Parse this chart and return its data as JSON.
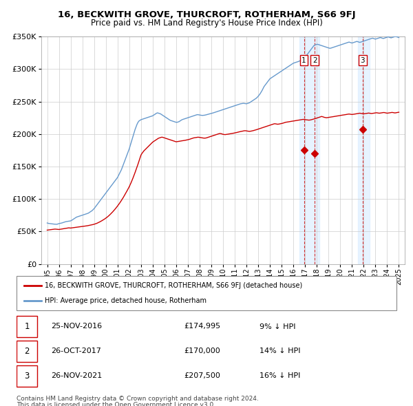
{
  "title": "16, BECKWITH GROVE, THURCROFT, ROTHERHAM, S66 9FJ",
  "subtitle": "Price paid vs. HM Land Registry's House Price Index (HPI)",
  "ylim": [
    0,
    350000
  ],
  "yticks": [
    0,
    50000,
    100000,
    150000,
    200000,
    250000,
    300000,
    350000
  ],
  "ytick_labels": [
    "£0",
    "£50K",
    "£100K",
    "£150K",
    "£200K",
    "£250K",
    "£300K",
    "£350K"
  ],
  "xlim_start": 1994.5,
  "xlim_end": 2025.5,
  "transactions": [
    {
      "label": "1",
      "date": "25-NOV-2016",
      "price": 174995,
      "hpi_diff": "9% ↓ HPI",
      "year": 2016.9
    },
    {
      "label": "2",
      "date": "26-OCT-2017",
      "price": 170000,
      "hpi_diff": "14% ↓ HPI",
      "year": 2017.82
    },
    {
      "label": "3",
      "date": "26-NOV-2021",
      "price": 207500,
      "hpi_diff": "16% ↓ HPI",
      "year": 2021.9
    }
  ],
  "legend_property": "16, BECKWITH GROVE, THURCROFT, ROTHERHAM, S66 9FJ (detached house)",
  "legend_hpi": "HPI: Average price, detached house, Rotherham",
  "footnote1": "Contains HM Land Registry data © Crown copyright and database right 2024.",
  "footnote2": "This data is licensed under the Open Government Licence v3.0.",
  "property_color": "#cc0000",
  "hpi_color": "#6699cc",
  "hpi_fill_color": "#cce0f0",
  "shaded_regions": [
    {
      "x_start": 2016.5,
      "x_end": 2018.2
    },
    {
      "x_start": 2021.5,
      "x_end": 2022.5
    }
  ],
  "hpi_data_years": [
    1995.0,
    1995.083,
    1995.167,
    1995.25,
    1995.333,
    1995.417,
    1995.5,
    1995.583,
    1995.667,
    1995.75,
    1995.833,
    1995.917,
    1996.0,
    1996.083,
    1996.167,
    1996.25,
    1996.333,
    1996.417,
    1996.5,
    1996.583,
    1996.667,
    1996.75,
    1996.833,
    1996.917,
    1997.0,
    1997.083,
    1997.167,
    1997.25,
    1997.333,
    1997.417,
    1997.5,
    1997.583,
    1997.667,
    1997.75,
    1997.833,
    1997.917,
    1998.0,
    1998.083,
    1998.167,
    1998.25,
    1998.333,
    1998.417,
    1998.5,
    1998.583,
    1998.667,
    1998.75,
    1998.833,
    1998.917,
    1999.0,
    1999.083,
    1999.167,
    1999.25,
    1999.333,
    1999.417,
    1999.5,
    1999.583,
    1999.667,
    1999.75,
    1999.833,
    1999.917,
    2000.0,
    2000.083,
    2000.167,
    2000.25,
    2000.333,
    2000.417,
    2000.5,
    2000.583,
    2000.667,
    2000.75,
    2000.833,
    2000.917,
    2001.0,
    2001.083,
    2001.167,
    2001.25,
    2001.333,
    2001.417,
    2001.5,
    2001.583,
    2001.667,
    2001.75,
    2001.833,
    2001.917,
    2002.0,
    2002.083,
    2002.167,
    2002.25,
    2002.333,
    2002.417,
    2002.5,
    2002.583,
    2002.667,
    2002.75,
    2002.833,
    2002.917,
    2003.0,
    2003.083,
    2003.167,
    2003.25,
    2003.333,
    2003.417,
    2003.5,
    2003.583,
    2003.667,
    2003.75,
    2003.833,
    2003.917,
    2004.0,
    2004.083,
    2004.167,
    2004.25,
    2004.333,
    2004.417,
    2004.5,
    2004.583,
    2004.667,
    2004.75,
    2004.833,
    2004.917,
    2005.0,
    2005.083,
    2005.167,
    2005.25,
    2005.333,
    2005.417,
    2005.5,
    2005.583,
    2005.667,
    2005.75,
    2005.833,
    2005.917,
    2006.0,
    2006.083,
    2006.167,
    2006.25,
    2006.333,
    2006.417,
    2006.5,
    2006.583,
    2006.667,
    2006.75,
    2006.833,
    2006.917,
    2007.0,
    2007.083,
    2007.167,
    2007.25,
    2007.333,
    2007.417,
    2007.5,
    2007.583,
    2007.667,
    2007.75,
    2007.833,
    2007.917,
    2008.0,
    2008.083,
    2008.167,
    2008.25,
    2008.333,
    2008.417,
    2008.5,
    2008.583,
    2008.667,
    2008.75,
    2008.833,
    2008.917,
    2009.0,
    2009.083,
    2009.167,
    2009.25,
    2009.333,
    2009.417,
    2009.5,
    2009.583,
    2009.667,
    2009.75,
    2009.833,
    2009.917,
    2010.0,
    2010.083,
    2010.167,
    2010.25,
    2010.333,
    2010.417,
    2010.5,
    2010.583,
    2010.667,
    2010.75,
    2010.833,
    2010.917,
    2011.0,
    2011.083,
    2011.167,
    2011.25,
    2011.333,
    2011.417,
    2011.5,
    2011.583,
    2011.667,
    2011.75,
    2011.833,
    2011.917,
    2012.0,
    2012.083,
    2012.167,
    2012.25,
    2012.333,
    2012.417,
    2012.5,
    2012.583,
    2012.667,
    2012.75,
    2012.833,
    2012.917,
    2013.0,
    2013.083,
    2013.167,
    2013.25,
    2013.333,
    2013.417,
    2013.5,
    2013.583,
    2013.667,
    2013.75,
    2013.833,
    2013.917,
    2014.0,
    2014.083,
    2014.167,
    2014.25,
    2014.333,
    2014.417,
    2014.5,
    2014.583,
    2014.667,
    2014.75,
    2014.833,
    2014.917,
    2015.0,
    2015.083,
    2015.167,
    2015.25,
    2015.333,
    2015.417,
    2015.5,
    2015.583,
    2015.667,
    2015.75,
    2015.833,
    2015.917,
    2016.0,
    2016.083,
    2016.167,
    2016.25,
    2016.333,
    2016.417,
    2016.5,
    2016.583,
    2016.667,
    2016.75,
    2016.833,
    2016.917,
    2017.0,
    2017.083,
    2017.167,
    2017.25,
    2017.333,
    2017.417,
    2017.5,
    2017.583,
    2017.667,
    2017.75,
    2017.833,
    2017.917,
    2018.0,
    2018.083,
    2018.167,
    2018.25,
    2018.333,
    2018.417,
    2018.5,
    2018.583,
    2018.667,
    2018.75,
    2018.833,
    2018.917,
    2019.0,
    2019.083,
    2019.167,
    2019.25,
    2019.333,
    2019.417,
    2019.5,
    2019.583,
    2019.667,
    2019.75,
    2019.833,
    2019.917,
    2020.0,
    2020.083,
    2020.167,
    2020.25,
    2020.333,
    2020.417,
    2020.5,
    2020.583,
    2020.667,
    2020.75,
    2020.833,
    2020.917,
    2021.0,
    2021.083,
    2021.167,
    2021.25,
    2021.333,
    2021.417,
    2021.5,
    2021.583,
    2021.667,
    2021.75,
    2021.833,
    2021.917,
    2022.0,
    2022.083,
    2022.167,
    2022.25,
    2022.333,
    2022.417,
    2022.5,
    2022.583,
    2022.667,
    2022.75,
    2022.833,
    2022.917,
    2023.0,
    2023.083,
    2023.167,
    2023.25,
    2023.333,
    2023.417,
    2023.5,
    2023.583,
    2023.667,
    2023.75,
    2023.833,
    2023.917,
    2024.0,
    2024.083,
    2024.167,
    2024.25,
    2024.333,
    2024.417,
    2024.5,
    2024.583,
    2024.667,
    2024.75,
    2024.833,
    2024.917,
    2025.0
  ],
  "hpi_data_values": [
    63000,
    62500,
    62200,
    62000,
    61800,
    61500,
    61300,
    61200,
    61100,
    61000,
    61000,
    61500,
    62000,
    62300,
    62600,
    63000,
    63500,
    64000,
    64500,
    65000,
    65300,
    65500,
    65700,
    65900,
    66200,
    67000,
    68000,
    69000,
    70000,
    71000,
    72000,
    72500,
    73000,
    73500,
    74000,
    74500,
    75000,
    75500,
    76000,
    76500,
    77000,
    77500,
    78000,
    79000,
    80000,
    81000,
    82000,
    83500,
    85000,
    87000,
    89000,
    91000,
    93000,
    95000,
    97000,
    99000,
    101000,
    103000,
    105000,
    107000,
    109000,
    111000,
    113000,
    115000,
    117000,
    119000,
    121000,
    123000,
    125000,
    127000,
    129000,
    131000,
    133000,
    136000,
    139000,
    142000,
    145000,
    149000,
    153000,
    157000,
    161000,
    165000,
    169000,
    173000,
    177000,
    182000,
    187000,
    192000,
    197000,
    202000,
    207000,
    211000,
    215000,
    218000,
    220000,
    221000,
    222000,
    222500,
    223000,
    223500,
    224000,
    224500,
    225000,
    225500,
    226000,
    226500,
    227000,
    227500,
    228000,
    229000,
    230000,
    231000,
    232000,
    232500,
    232000,
    231500,
    231000,
    230000,
    229000,
    228000,
    227000,
    226000,
    225000,
    224000,
    223000,
    222000,
    221000,
    220500,
    220000,
    219500,
    219000,
    218500,
    218000,
    218000,
    218500,
    219000,
    220000,
    221000,
    222000,
    222500,
    223000,
    223500,
    224000,
    224500,
    225000,
    225500,
    226000,
    226500,
    227000,
    227500,
    228000,
    228500,
    229000,
    229500,
    229800,
    229500,
    229200,
    228900,
    228700,
    228600,
    228700,
    228900,
    229200,
    229600,
    230000,
    230400,
    230800,
    231200,
    231600,
    232000,
    232500,
    233000,
    233500,
    234000,
    234500,
    235000,
    235500,
    236000,
    236500,
    237000,
    237500,
    238000,
    238500,
    239000,
    239500,
    240000,
    240500,
    241000,
    241500,
    242000,
    242500,
    243000,
    243500,
    244000,
    244500,
    245000,
    245500,
    246000,
    246500,
    246800,
    247000,
    247200,
    247000,
    246800,
    246500,
    247000,
    247500,
    248000,
    249000,
    250000,
    251000,
    252000,
    253000,
    254000,
    255000,
    256500,
    258000,
    260000,
    262000,
    264500,
    267000,
    270000,
    273000,
    275000,
    277000,
    279000,
    281000,
    283000,
    285000,
    286000,
    287000,
    288000,
    289000,
    290000,
    291000,
    292000,
    293000,
    294000,
    295000,
    296000,
    297000,
    298000,
    299000,
    300000,
    301000,
    302000,
    303000,
    304000,
    305000,
    306000,
    307000,
    308000,
    309000,
    309500,
    310000,
    310500,
    311000,
    311500,
    312000,
    313000,
    314000,
    315000,
    316000,
    317000,
    318000,
    320000,
    322000,
    324000,
    326000,
    328000,
    330000,
    332000,
    334000,
    336000,
    337000,
    337500,
    338000,
    338000,
    337500,
    337000,
    336500,
    336000,
    335500,
    335000,
    334500,
    334000,
    333500,
    333000,
    332500,
    332000,
    332000,
    332500,
    333000,
    333500,
    334000,
    334500,
    335000,
    335500,
    336000,
    336500,
    337000,
    337500,
    338000,
    338500,
    339000,
    339500,
    340000,
    340500,
    341000,
    341500,
    341000,
    340500,
    340000,
    340500,
    341000,
    341500,
    342000,
    342500,
    342000,
    341500,
    341000,
    341500,
    342000,
    342500,
    343000,
    343500,
    344000,
    344500,
    345000,
    345500,
    346000,
    346500,
    347000,
    347500,
    347000,
    346500,
    346000,
    346500,
    347000,
    347500,
    348000,
    348500,
    348000,
    347500,
    347000,
    347500,
    348000,
    348500,
    349000,
    349500,
    349000,
    348500,
    348000,
    348500,
    349000,
    349500,
    350000,
    350000,
    349500,
    349000,
    348500
  ],
  "prop_data_years": [
    1995.0,
    1995.083,
    1995.167,
    1995.25,
    1995.333,
    1995.417,
    1995.5,
    1995.583,
    1995.667,
    1995.75,
    1995.833,
    1995.917,
    1996.0,
    1996.083,
    1996.167,
    1996.25,
    1996.333,
    1996.417,
    1996.5,
    1996.583,
    1996.667,
    1996.75,
    1996.833,
    1996.917,
    1997.0,
    1997.083,
    1997.167,
    1997.25,
    1997.333,
    1997.417,
    1997.5,
    1997.583,
    1997.667,
    1997.75,
    1997.833,
    1997.917,
    1998.0,
    1998.083,
    1998.167,
    1998.25,
    1998.333,
    1998.417,
    1998.5,
    1998.583,
    1998.667,
    1998.75,
    1998.833,
    1998.917,
    1999.0,
    1999.083,
    1999.167,
    1999.25,
    1999.333,
    1999.417,
    1999.5,
    1999.583,
    1999.667,
    1999.75,
    1999.833,
    1999.917,
    2000.0,
    2000.083,
    2000.167,
    2000.25,
    2000.333,
    2000.417,
    2000.5,
    2000.583,
    2000.667,
    2000.75,
    2000.833,
    2000.917,
    2001.0,
    2001.083,
    2001.167,
    2001.25,
    2001.333,
    2001.417,
    2001.5,
    2001.583,
    2001.667,
    2001.75,
    2001.833,
    2001.917,
    2002.0,
    2002.083,
    2002.167,
    2002.25,
    2002.333,
    2002.417,
    2002.5,
    2002.583,
    2002.667,
    2002.75,
    2002.833,
    2002.917,
    2003.0,
    2003.083,
    2003.167,
    2003.25,
    2003.333,
    2003.417,
    2003.5,
    2003.583,
    2003.667,
    2003.75,
    2003.833,
    2003.917,
    2004.0,
    2004.083,
    2004.167,
    2004.25,
    2004.333,
    2004.417,
    2004.5,
    2004.583,
    2004.667,
    2004.75,
    2004.833,
    2004.917,
    2005.0,
    2005.083,
    2005.167,
    2005.25,
    2005.333,
    2005.417,
    2005.5,
    2005.583,
    2005.667,
    2005.75,
    2005.833,
    2005.917,
    2006.0,
    2006.083,
    2006.167,
    2006.25,
    2006.333,
    2006.417,
    2006.5,
    2006.583,
    2006.667,
    2006.75,
    2006.833,
    2006.917,
    2007.0,
    2007.083,
    2007.167,
    2007.25,
    2007.333,
    2007.417,
    2007.5,
    2007.583,
    2007.667,
    2007.75,
    2007.833,
    2007.917,
    2008.0,
    2008.083,
    2008.167,
    2008.25,
    2008.333,
    2008.417,
    2008.5,
    2008.583,
    2008.667,
    2008.75,
    2008.833,
    2008.917,
    2009.0,
    2009.083,
    2009.167,
    2009.25,
    2009.333,
    2009.417,
    2009.5,
    2009.583,
    2009.667,
    2009.75,
    2009.833,
    2009.917,
    2010.0,
    2010.083,
    2010.167,
    2010.25,
    2010.333,
    2010.417,
    2010.5,
    2010.583,
    2010.667,
    2010.75,
    2010.833,
    2010.917,
    2011.0,
    2011.083,
    2011.167,
    2011.25,
    2011.333,
    2011.417,
    2011.5,
    2011.583,
    2011.667,
    2011.75,
    2011.833,
    2011.917,
    2012.0,
    2012.083,
    2012.167,
    2012.25,
    2012.333,
    2012.417,
    2012.5,
    2012.583,
    2012.667,
    2012.75,
    2012.833,
    2012.917,
    2013.0,
    2013.083,
    2013.167,
    2013.25,
    2013.333,
    2013.417,
    2013.5,
    2013.583,
    2013.667,
    2013.75,
    2013.833,
    2013.917,
    2014.0,
    2014.083,
    2014.167,
    2014.25,
    2014.333,
    2014.417,
    2014.5,
    2014.583,
    2014.667,
    2014.75,
    2014.833,
    2014.917,
    2015.0,
    2015.083,
    2015.167,
    2015.25,
    2015.333,
    2015.417,
    2015.5,
    2015.583,
    2015.667,
    2015.75,
    2015.833,
    2015.917,
    2016.0,
    2016.083,
    2016.167,
    2016.25,
    2016.333,
    2016.417,
    2016.5,
    2016.583,
    2016.667,
    2016.75,
    2016.833,
    2016.917,
    2017.0,
    2017.083,
    2017.167,
    2017.25,
    2017.333,
    2017.417,
    2017.5,
    2017.583,
    2017.667,
    2017.75,
    2017.833,
    2017.917,
    2018.0,
    2018.083,
    2018.167,
    2018.25,
    2018.333,
    2018.417,
    2018.5,
    2018.583,
    2018.667,
    2018.75,
    2018.833,
    2018.917,
    2019.0,
    2019.083,
    2019.167,
    2019.25,
    2019.333,
    2019.417,
    2019.5,
    2019.583,
    2019.667,
    2019.75,
    2019.833,
    2019.917,
    2020.0,
    2020.083,
    2020.167,
    2020.25,
    2020.333,
    2020.417,
    2020.5,
    2020.583,
    2020.667,
    2020.75,
    2020.833,
    2020.917,
    2021.0,
    2021.083,
    2021.167,
    2021.25,
    2021.333,
    2021.417,
    2021.5,
    2021.583,
    2021.667,
    2021.75,
    2021.833,
    2021.917,
    2022.0,
    2022.083,
    2022.167,
    2022.25,
    2022.333,
    2022.417,
    2022.5,
    2022.583,
    2022.667,
    2022.75,
    2022.833,
    2022.917,
    2023.0,
    2023.083,
    2023.167,
    2023.25,
    2023.333,
    2023.417,
    2023.5,
    2023.583,
    2023.667,
    2023.75,
    2023.833,
    2023.917,
    2024.0,
    2024.083,
    2024.167,
    2024.25,
    2024.333,
    2024.417,
    2024.5,
    2024.583,
    2024.667,
    2024.75,
    2024.833,
    2024.917,
    2025.0
  ],
  "prop_data_values": [
    52000,
    52200,
    52400,
    52600,
    52800,
    53000,
    53200,
    53400,
    53600,
    53500,
    53300,
    53100,
    53000,
    53200,
    53500,
    53700,
    54000,
    54200,
    54500,
    54700,
    55000,
    55200,
    55500,
    55300,
    55200,
    55400,
    55600,
    55800,
    56000,
    56200,
    56400,
    56600,
    56800,
    57000,
    57200,
    57400,
    57600,
    57800,
    58000,
    58200,
    58500,
    58700,
    59000,
    59300,
    59600,
    59900,
    60200,
    60600,
    61000,
    61500,
    62000,
    62600,
    63300,
    64000,
    64800,
    65600,
    66500,
    67400,
    68300,
    69300,
    70400,
    71500,
    72700,
    74000,
    75400,
    76900,
    78400,
    80000,
    81700,
    83400,
    85200,
    87100,
    89100,
    91100,
    93200,
    95400,
    97700,
    100100,
    102500,
    105100,
    107700,
    110400,
    113100,
    115900,
    118800,
    122000,
    125400,
    129000,
    132800,
    136700,
    140800,
    145000,
    149300,
    153700,
    158200,
    162800,
    167500,
    170000,
    172000,
    174000,
    175500,
    177000,
    178500,
    180000,
    181500,
    183000,
    184500,
    186000,
    187500,
    188500,
    189500,
    190500,
    191500,
    192500,
    193500,
    194000,
    194500,
    195000,
    195000,
    194500,
    194000,
    193500,
    193000,
    192500,
    192000,
    191500,
    191000,
    190500,
    190000,
    189500,
    189000,
    188500,
    188000,
    188200,
    188500,
    188700,
    189000,
    189200,
    189500,
    189700,
    190000,
    190200,
    190500,
    190700,
    191000,
    191500,
    192000,
    192500,
    193000,
    193500,
    194000,
    194200,
    194500,
    194700,
    195000,
    195000,
    194800,
    194500,
    194200,
    193900,
    193700,
    193600,
    193700,
    194000,
    194500,
    195000,
    195500,
    196000,
    196500,
    197000,
    197500,
    198000,
    198500,
    199000,
    199500,
    200000,
    200500,
    200700,
    200500,
    200000,
    199500,
    199200,
    199000,
    199200,
    199500,
    199700,
    200000,
    200200,
    200500,
    200700,
    201000,
    201300,
    201600,
    202000,
    202300,
    202700,
    203000,
    203400,
    203800,
    204100,
    204500,
    204800,
    205000,
    205000,
    204800,
    204500,
    204200,
    204000,
    204200,
    204500,
    204800,
    205200,
    205600,
    206000,
    206500,
    207000,
    207500,
    208000,
    208500,
    209000,
    209500,
    210000,
    210500,
    211000,
    211500,
    212000,
    212500,
    213000,
    213500,
    214000,
    214500,
    215000,
    215500,
    215800,
    215500,
    215200,
    215000,
    215200,
    215500,
    215800,
    216000,
    216500,
    217000,
    217500,
    218000,
    218200,
    218500,
    218700,
    219000,
    219200,
    219500,
    219700,
    220000,
    220200,
    220500,
    220700,
    221000,
    221200,
    221500,
    221700,
    222000,
    222200,
    222500,
    222300,
    222100,
    221900,
    221700,
    221500,
    221300,
    221500,
    221800,
    222200,
    222600,
    223000,
    223500,
    224000,
    224500,
    225000,
    225500,
    226000,
    226500,
    227000,
    226500,
    226000,
    225500,
    225200,
    225000,
    225200,
    225500,
    225800,
    226000,
    226200,
    226500,
    226700,
    227000,
    227200,
    227500,
    227700,
    228000,
    228200,
    228500,
    228700,
    229000,
    229200,
    229500,
    229700,
    230000,
    230200,
    230500,
    230700,
    230500,
    230200,
    230000,
    230200,
    230500,
    230700,
    231000,
    231200,
    231500,
    231700,
    232000,
    231700,
    231500,
    231200,
    231000,
    231200,
    231500,
    231700,
    232000,
    232200,
    232000,
    231700,
    231500,
    231700,
    232000,
    232200,
    232500,
    232700,
    232500,
    232200,
    232000,
    232200,
    232500,
    232700,
    233000,
    233000,
    232700,
    232400,
    232000,
    232200,
    232500,
    232700,
    233000,
    233200,
    233000,
    232700,
    232400,
    232700,
    233000,
    233200,
    233500
  ]
}
